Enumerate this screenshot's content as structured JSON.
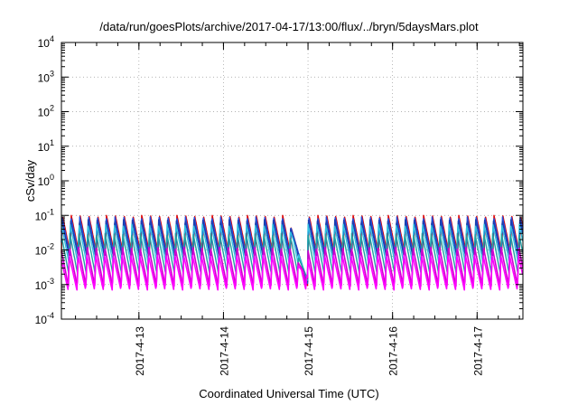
{
  "chart_data": {
    "type": "line",
    "title": "/data/run/goesPlots/archive/2017-04-17/13:00/flux/../bryn/5daysMars.plot",
    "xlabel": "Coordinated Universal Time (UTC)",
    "ylabel": "cSv/day",
    "yscale": "log",
    "ylim": [
      0.0001,
      10000
    ],
    "xlim": [
      "2017-04-12T02:00",
      "2017-04-17T13:00"
    ],
    "grid": true,
    "y_ticks": [
      {
        "base": "10",
        "exp": "-4",
        "value": 0.0001
      },
      {
        "base": "10",
        "exp": "-3",
        "value": 0.001
      },
      {
        "base": "10",
        "exp": "-2",
        "value": 0.01
      },
      {
        "base": "10",
        "exp": "-1",
        "value": 0.1
      },
      {
        "base": "10",
        "exp": "0",
        "value": 1
      },
      {
        "base": "10",
        "exp": "1",
        "value": 10
      },
      {
        "base": "10",
        "exp": "2",
        "value": 100
      },
      {
        "base": "10",
        "exp": "3",
        "value": 1000
      },
      {
        "base": "10",
        "exp": "4",
        "value": 10000
      }
    ],
    "x_ticks": [
      {
        "label": "2017-4-13",
        "value": "2017-04-13T00:00"
      },
      {
        "label": "2017-4-14",
        "value": "2017-04-14T00:00"
      },
      {
        "label": "2017-4-15",
        "value": "2017-04-15T00:00"
      },
      {
        "label": "2017-4-16",
        "value": "2017-04-16T00:00"
      },
      {
        "label": "2017-4-17",
        "value": "2017-04-17T00:00"
      }
    ],
    "sawtooth_period_hours": 2.5,
    "series": [
      {
        "color": "#e00000",
        "peak": 0.1,
        "trough": 0.008
      },
      {
        "color": "#2050e0",
        "peak": 0.09,
        "trough": 0.007
      },
      {
        "color": "#1a3fb0",
        "peak": 0.075,
        "trough": 0.006
      },
      {
        "color": "#30c0e0",
        "peak": 0.055,
        "trough": 0.004
      },
      {
        "color": "#20a0a0",
        "peak": 0.03,
        "trough": 0.002
      },
      {
        "color": "#d000d0",
        "peak": 0.012,
        "trough": 0.0009
      },
      {
        "color": "#ff00ff",
        "peak": 0.007,
        "trough": 0.0007
      }
    ],
    "dip": {
      "start": "2017-04-14T18:00",
      "end": "2017-04-15T00:00",
      "min": 0.0007
    }
  }
}
